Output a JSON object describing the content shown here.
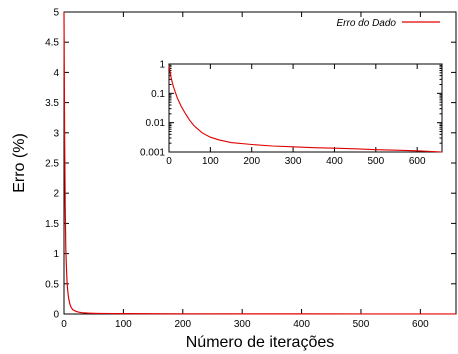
{
  "chart_data": [
    {
      "type": "line",
      "xlabel": "Número de iterações",
      "ylabel": "Erro (%)",
      "xlim": [
        0,
        660
      ],
      "ylim": [
        0,
        5
      ],
      "xticks": [
        "0",
        "100",
        "200",
        "300",
        "400",
        "500",
        "600"
      ],
      "yticks": [
        "0",
        "0.5",
        "1",
        "1.5",
        "2",
        "2.5",
        "3",
        "3.5",
        "4",
        "4.5",
        "5"
      ],
      "legend_position": "top-right",
      "grid": false,
      "series": [
        {
          "name": "Erro do Dado",
          "color": "#e00000",
          "x": [
            0,
            1,
            2,
            3,
            4,
            5,
            6,
            7,
            8,
            10,
            12,
            15,
            20,
            25,
            30,
            40,
            50,
            60,
            80,
            100,
            150,
            200,
            300,
            400,
            500,
            600,
            660
          ],
          "y": [
            5.0,
            3.0,
            1.8,
            1.1,
            0.8,
            0.55,
            0.42,
            0.32,
            0.25,
            0.16,
            0.11,
            0.07,
            0.045,
            0.03,
            0.022,
            0.014,
            0.011,
            0.009,
            0.007,
            0.006,
            0.004,
            0.003,
            0.002,
            0.0015,
            0.0012,
            0.0011,
            0.001
          ]
        }
      ]
    },
    {
      "type": "line",
      "inset": true,
      "yscale": "log",
      "xlim": [
        0,
        660
      ],
      "ylim": [
        0.001,
        1
      ],
      "xticks": [
        "0",
        "100",
        "200",
        "300",
        "400",
        "500",
        "600"
      ],
      "yticks": [
        "1",
        "0.1",
        "0.01",
        "0.001"
      ],
      "series": [
        {
          "color": "#e00000",
          "x": [
            0,
            5,
            10,
            20,
            30,
            40,
            50,
            60,
            70,
            80,
            100,
            120,
            150,
            200,
            250,
            300,
            350,
            400,
            450,
            500,
            550,
            600,
            660
          ],
          "y": [
            0.9,
            0.35,
            0.18,
            0.07,
            0.035,
            0.02,
            0.012,
            0.008,
            0.006,
            0.0045,
            0.0032,
            0.0026,
            0.0021,
            0.0018,
            0.0016,
            0.0015,
            0.0014,
            0.00135,
            0.00128,
            0.0012,
            0.00115,
            0.0011,
            0.001
          ]
        }
      ]
    }
  ]
}
